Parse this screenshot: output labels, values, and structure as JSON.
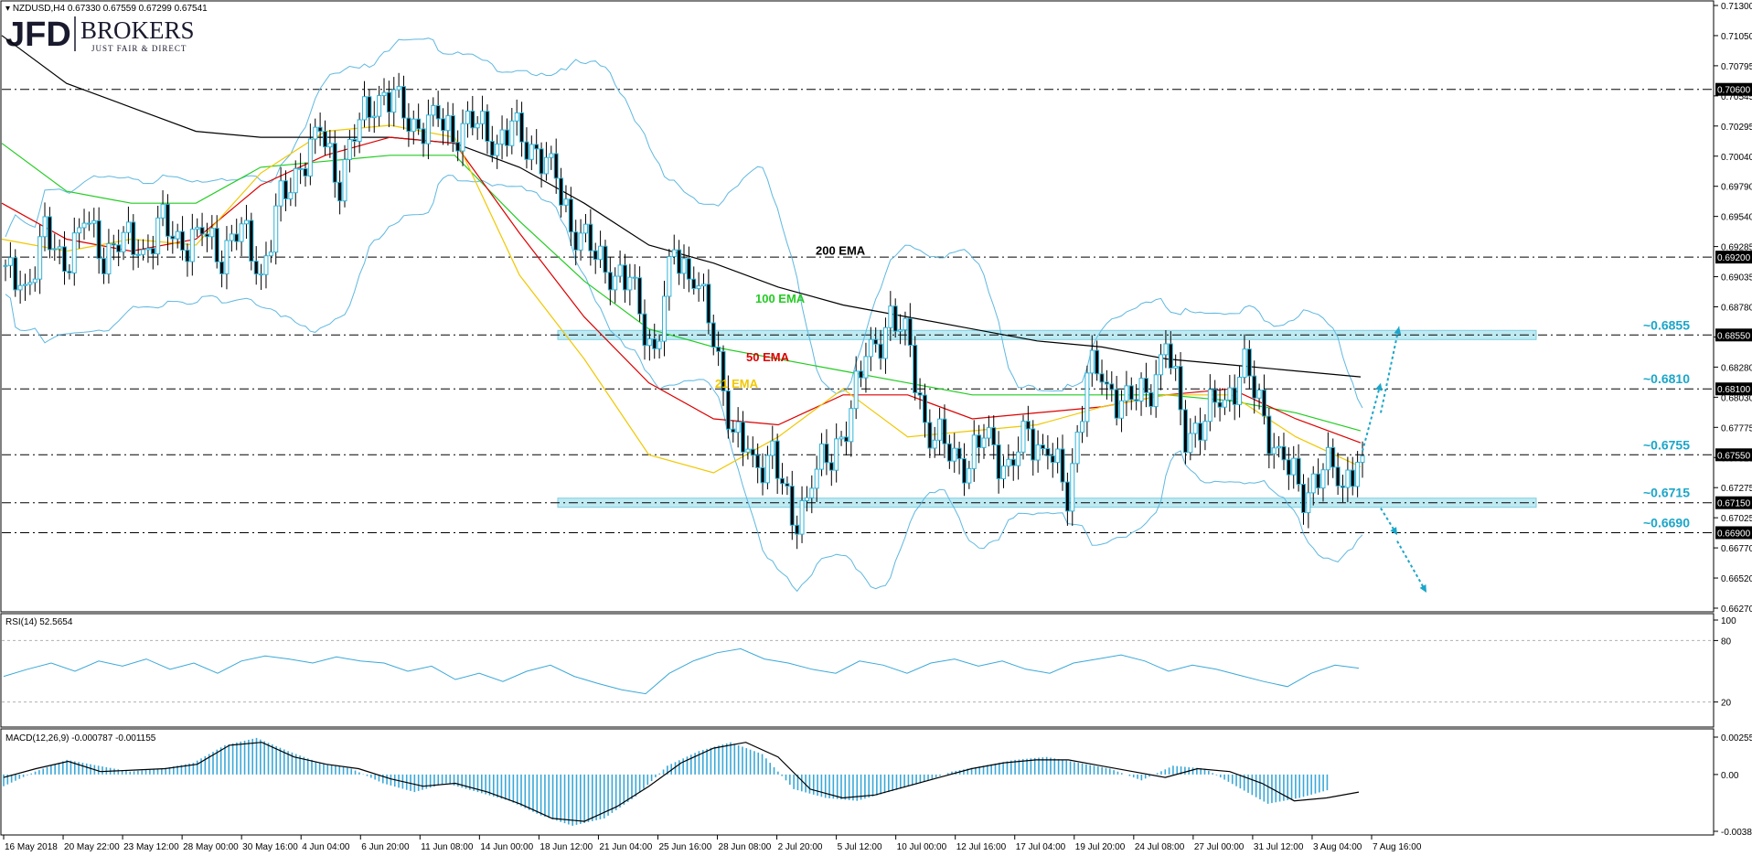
{
  "header": {
    "symbol_line": "NZDUSD,H4  0.67330 0.67559 0.67299 0.67541",
    "logo_main": "JFD",
    "logo_brand": "BROKERS",
    "logo_tagline": "JUST FAIR & DIRECT"
  },
  "chart_data": [
    {
      "type": "candlestick",
      "panel": "price",
      "symbol": "NZDUSD",
      "timeframe": "H4",
      "ohlc_last": {
        "open": 0.6733,
        "high": 0.67559,
        "low": 0.67299,
        "close": 0.67541
      },
      "ylim": [
        0.6627,
        0.713
      ],
      "y_ticks": [
        "0.71300",
        "0.71050",
        "0.70795",
        "0.70545",
        "0.70295",
        "0.70040",
        "0.69790",
        "0.69540",
        "0.69285",
        "0.69035",
        "0.68780",
        "0.68530",
        "0.68280",
        "0.68030",
        "0.67775",
        "0.67525",
        "0.67275",
        "0.67025",
        "0.66770",
        "0.66520",
        "0.66270"
      ],
      "x_ticks": [
        "16 May 2018",
        "20 May 22:00",
        "23 May 12:00",
        "28 May 00:00",
        "30 May 16:00",
        "4 Jun 04:00",
        "6 Jun 20:00",
        "11 Jun 08:00",
        "14 Jun 00:00",
        "18 Jun 12:00",
        "21 Jun 04:00",
        "25 Jun 16:00",
        "28 Jun 08:00",
        "2 Jul 20:00",
        "5 Jul 12:00",
        "10 Jul 00:00",
        "12 Jul 16:00",
        "17 Jul 04:00",
        "19 Jul 20:00",
        "24 Jul 08:00",
        "27 Jul 00:00",
        "31 Jul 12:00",
        "3 Aug 04:00",
        "7 Aug 16:00"
      ],
      "close_path": [
        0.6905,
        0.6895,
        0.6935,
        0.6915,
        0.695,
        0.6925,
        0.6935,
        0.6925,
        0.6945,
        0.693,
        0.694,
        0.6925,
        0.6945,
        0.6905,
        0.6965,
        0.6995,
        0.7025,
        0.6985,
        0.7035,
        0.7055,
        0.7045,
        0.7025,
        0.7035,
        0.7025,
        0.7035,
        0.7015,
        0.7025,
        0.7005,
        0.6985,
        0.694,
        0.6925,
        0.6905,
        0.689,
        0.6835,
        0.6925,
        0.6905,
        0.6855,
        0.6775,
        0.6745,
        0.6755,
        0.6695,
        0.6735,
        0.6755,
        0.6795,
        0.6845,
        0.6865,
        0.6845,
        0.6765,
        0.6765,
        0.6745,
        0.6775,
        0.6735,
        0.6775,
        0.6755,
        0.6725,
        0.6825,
        0.6815,
        0.6795,
        0.6805,
        0.6845,
        0.6775,
        0.6785,
        0.6805,
        0.6825,
        0.6785,
        0.6745,
        0.6725,
        0.6745,
        0.6735,
        0.6754
      ],
      "series": [
        {
          "name": "200 EMA",
          "color": "#000000",
          "values": [
            0.7105,
            0.7065,
            0.7045,
            0.7025,
            0.702,
            0.702,
            0.702,
            0.7015,
            0.6995,
            0.6965,
            0.693,
            0.6915,
            0.6895,
            0.688,
            0.687,
            0.686,
            0.685,
            0.6845,
            0.6835,
            0.683,
            0.6825,
            0.682
          ]
        },
        {
          "name": "100 EMA",
          "color": "#22cc22",
          "values": [
            0.7015,
            0.6975,
            0.6965,
            0.6965,
            0.6995,
            0.7,
            0.7005,
            0.7005,
            0.695,
            0.69,
            0.686,
            0.6845,
            0.6835,
            0.6825,
            0.6815,
            0.6805,
            0.6805,
            0.6805,
            0.6805,
            0.68,
            0.679,
            0.6775
          ]
        },
        {
          "name": "50 EMA",
          "color": "#dd0000",
          "values": [
            0.6965,
            0.6935,
            0.6925,
            0.6935,
            0.698,
            0.7005,
            0.702,
            0.7015,
            0.694,
            0.687,
            0.6815,
            0.6785,
            0.678,
            0.6805,
            0.6805,
            0.6785,
            0.679,
            0.6795,
            0.6805,
            0.681,
            0.6785,
            0.6765
          ]
        },
        {
          "name": "21 EMA",
          "color": "#f0c800",
          "values": [
            0.6935,
            0.6925,
            0.6935,
            0.693,
            0.699,
            0.7025,
            0.703,
            0.702,
            0.6905,
            0.6835,
            0.6755,
            0.674,
            0.677,
            0.681,
            0.677,
            0.6775,
            0.678,
            0.6795,
            0.6805,
            0.6805,
            0.677,
            0.6745
          ]
        }
      ],
      "levels": [
        {
          "value": 0.706,
          "label": "",
          "tag": "0.70600"
        },
        {
          "value": 0.692,
          "label": "",
          "tag": "0.69200"
        },
        {
          "value": 0.6855,
          "label": "~0.6855",
          "tag": "0.68550",
          "zone": true
        },
        {
          "value": 0.681,
          "label": "~0.6810",
          "tag": "0.68100"
        },
        {
          "value": 0.6755,
          "label": "~0.6755",
          "tag": "0.67550"
        },
        {
          "value": 0.6715,
          "label": "~0.6715",
          "tag": "0.67150",
          "zone": true
        },
        {
          "value": 0.669,
          "label": "~0.6690",
          "tag": "0.66900"
        }
      ],
      "annotations": [
        "200 EMA",
        "100 EMA",
        "50 EMA",
        "21 EMA"
      ],
      "grid": false
    },
    {
      "type": "line",
      "panel": "RSI",
      "title": "RSI(14) 52.5654",
      "ylim": [
        0,
        100
      ],
      "y_ticks": [
        "100",
        "80",
        "20"
      ],
      "levels": [
        80,
        20
      ],
      "color": "#3aa8d8",
      "values": [
        45,
        52,
        58,
        50,
        60,
        55,
        62,
        52,
        58,
        48,
        60,
        65,
        62,
        58,
        64,
        60,
        58,
        50,
        55,
        42,
        48,
        40,
        50,
        56,
        45,
        38,
        32,
        28,
        48,
        60,
        68,
        72,
        62,
        58,
        52,
        48,
        60,
        56,
        48,
        58,
        62,
        55,
        60,
        52,
        48,
        58,
        62,
        66,
        60,
        50,
        56,
        52,
        46,
        40,
        35,
        48,
        56,
        53
      ]
    },
    {
      "type": "bar",
      "panel": "MACD",
      "title": "MACD(12,26,9) -0.000787 -0.001155",
      "ylim": [
        -0.003881,
        0.002555
      ],
      "y_ticks": [
        "0.002555",
        "0.00",
        "-0.003881"
      ],
      "color": "#3aa8d8",
      "signal_color": "#000000",
      "histogram": [
        -0.0008,
        0.0002,
        0.001,
        0.0006,
        0.0002,
        0.0004,
        0.0008,
        0.002,
        0.0025,
        0.0016,
        0.0008,
        0.0004,
        -0.0006,
        -0.0012,
        -0.0006,
        -0.0012,
        -0.0018,
        -0.0028,
        -0.0035,
        -0.003,
        -0.0015,
        0.0006,
        0.0016,
        0.0022,
        0.0014,
        -0.001,
        -0.0016,
        -0.0018,
        -0.0012,
        -0.0006,
        0.0002,
        0.0006,
        0.001,
        0.0012,
        0.0008,
        0.0004,
        -0.0004,
        0.0006,
        0.0004,
        -0.0008,
        -0.002,
        -0.0016,
        -0.001
      ],
      "signal": [
        -0.0002,
        0.0004,
        0.0009,
        0.0002,
        0.0003,
        0.0004,
        0.0007,
        0.002,
        0.0022,
        0.0012,
        0.0007,
        0.0004,
        -0.0003,
        -0.0008,
        -0.0006,
        -0.0012,
        -0.002,
        -0.003,
        -0.0032,
        -0.0022,
        -0.0008,
        0.0008,
        0.0018,
        0.0022,
        0.0012,
        -0.001,
        -0.0016,
        -0.0014,
        -0.0008,
        -0.0002,
        0.0004,
        0.0008,
        0.001,
        0.001,
        0.0006,
        0.0002,
        -0.0002,
        0.0004,
        0.0002,
        -0.0006,
        -0.0018,
        -0.0016,
        -0.0012
      ]
    }
  ]
}
